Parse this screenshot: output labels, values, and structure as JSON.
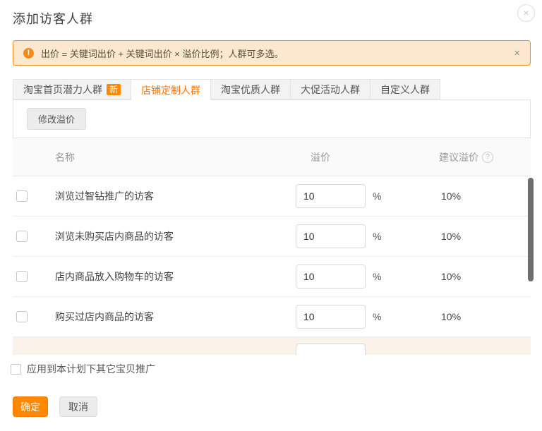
{
  "dialog": {
    "title": "添加访客人群",
    "close_icon": "×"
  },
  "notice": {
    "icon_glyph": "!",
    "text": "出价 = 关键词出价 + 关键词出价 × 溢价比例；人群可多选。",
    "close_icon": "×"
  },
  "tabs": [
    {
      "label": "淘宝首页潜力人群",
      "badge": "新",
      "active": false
    },
    {
      "label": "店铺定制人群",
      "active": true
    },
    {
      "label": "淘宝优质人群",
      "active": false
    },
    {
      "label": "大促活动人群",
      "active": false
    },
    {
      "label": "自定义人群",
      "active": false
    }
  ],
  "toolbar": {
    "modify_premium_label": "修改溢价"
  },
  "table": {
    "headers": {
      "name": "名称",
      "premium": "溢价",
      "suggested": "建议溢价",
      "help_icon": "?"
    },
    "percent_sign": "%",
    "rows": [
      {
        "name": "浏览过智钻推广的访客",
        "premium": "10",
        "suggested": "10%"
      },
      {
        "name": "浏览未购买店内商品的访客",
        "premium": "10",
        "suggested": "10%"
      },
      {
        "name": "店内商品放入购物车的访客",
        "premium": "10",
        "suggested": "10%"
      },
      {
        "name": "购买过店内商品的访客",
        "premium": "10",
        "suggested": "10%"
      }
    ]
  },
  "footer": {
    "apply_label": "应用到本计划下其它宝贝推广",
    "confirm_label": "确定",
    "cancel_label": "取消"
  },
  "colors": {
    "accent": "#ff8800",
    "tab_active_text": "#ff7300",
    "notice_bg": "#fbe8cf",
    "notice_border": "#ef8e1d",
    "partial_row_bg": "#faf2e8",
    "scrollbar_thumb": "#6f6f6f"
  }
}
